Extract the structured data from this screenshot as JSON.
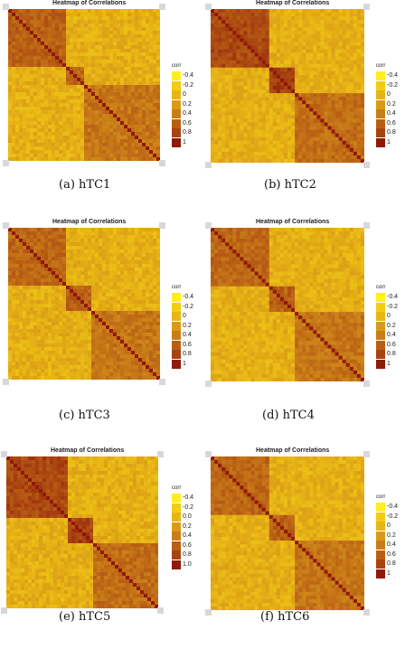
{
  "chart_data": [
    {
      "type": "heatmap",
      "id": "a",
      "title": "Heatmap of Correlations",
      "caption": "(a) hTC1",
      "legend_title": "corr",
      "legend_labels": [
        "-0.4",
        "-0.2",
        "0",
        "0.2",
        "0.4",
        "0.6",
        "0.8",
        "1"
      ],
      "blocks": [
        0.38,
        0.12,
        0.15
      ],
      "block_values": [
        0.6,
        0.55,
        0.45
      ]
    },
    {
      "type": "heatmap",
      "id": "b",
      "title": "Heatmap of Correlations",
      "caption": "(b) hTC2",
      "legend_title": "corr",
      "legend_labels": [
        "-0.4",
        "-0.2",
        "0",
        "0.2",
        "0.4",
        "0.6",
        "0.8",
        "1"
      ],
      "blocks": [
        0.38,
        0.17,
        0.45
      ],
      "block_values": [
        0.75,
        0.8,
        0.5
      ]
    },
    {
      "type": "heatmap",
      "id": "c",
      "title": "Heatmap of Correlations",
      "caption": "(c) hTC3",
      "legend_title": "corr",
      "legend_labels": [
        "-0.4",
        "-0.2",
        "0",
        "0.2",
        "0.4",
        "0.6",
        "0.8",
        "1"
      ],
      "blocks": [
        0.38,
        0.17,
        0.45
      ],
      "block_values": [
        0.55,
        0.6,
        0.45
      ]
    },
    {
      "type": "heatmap",
      "id": "d",
      "title": "Heatmap of Correlations",
      "caption": "(d) hTC4",
      "legend_title": "corr",
      "legend_labels": [
        "-0.4",
        "-0.2",
        "0",
        "0.2",
        "0.4",
        "0.6",
        "0.8",
        "1"
      ],
      "blocks": [
        0.38,
        0.17,
        0.45
      ],
      "block_values": [
        0.55,
        0.6,
        0.45
      ]
    },
    {
      "type": "heatmap",
      "id": "e",
      "title": "Heatmap of Correlations",
      "caption": "(e) hTC5",
      "legend_title": "corr",
      "legend_labels": [
        "-0.4",
        "-0.2",
        "0.0",
        "0.2",
        "0.4",
        "0.6",
        "0.8",
        "1.0"
      ],
      "blocks": [
        0.4,
        0.17,
        0.43
      ],
      "block_values": [
        0.75,
        0.8,
        0.5
      ]
    },
    {
      "type": "heatmap",
      "id": "f",
      "title": "Heatmap of Correlations",
      "caption": "(f) hTC6",
      "legend_title": "corr",
      "legend_labels": [
        "-0.4",
        "-0.2",
        "0",
        "0.2",
        "0.4",
        "0.6",
        "0.8",
        "1"
      ],
      "blocks": [
        0.38,
        0.17,
        0.45
      ],
      "block_values": [
        0.55,
        0.6,
        0.45
      ]
    }
  ]
}
